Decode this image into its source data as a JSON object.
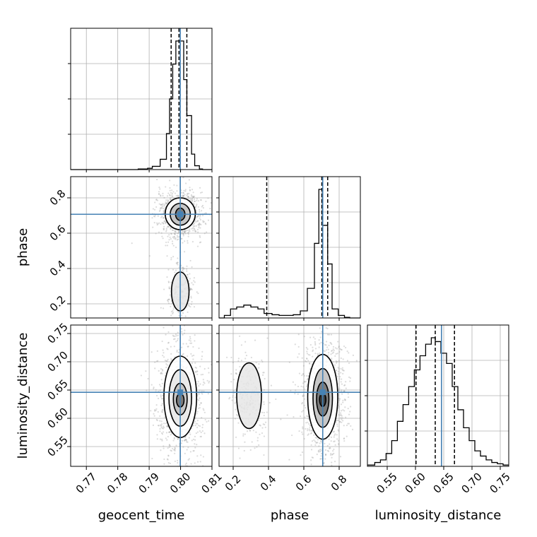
{
  "chart_data": {
    "type": "corner",
    "parameters": [
      "geocent_time",
      "phase",
      "luminosity_distance"
    ],
    "axis_labels": {
      "geocent_time": "geocent_time",
      "phase": "phase",
      "luminosity_distance": "luminosity_distance"
    },
    "ranges": {
      "geocent_time": [
        0.765,
        0.81
      ],
      "phase": [
        0.12,
        0.92
      ],
      "luminosity_distance": [
        0.515,
        0.765
      ]
    },
    "ticks": {
      "geocent_time": [
        "0.77",
        "0.78",
        "0.79",
        "0.80",
        "0.81"
      ],
      "phase": [
        "0.2",
        "0.4",
        "0.6",
        "0.8"
      ],
      "luminosity_distance": [
        "0.55",
        "0.60",
        "0.65",
        "0.70",
        "0.75"
      ]
    },
    "truths": {
      "geocent_time": 0.7999,
      "phase": 0.707,
      "luminosity_distance": 0.646
    },
    "quantiles": {
      "geocent_time": [
        0.797,
        0.7995,
        0.802
      ],
      "phase": [
        0.39,
        0.702,
        0.735
      ],
      "luminosity_distance": [
        0.601,
        0.635,
        0.669
      ]
    },
    "histograms": {
      "geocent_time": {
        "bin_edges": [
          0.765,
          0.7865,
          0.7895,
          0.791,
          0.7935,
          0.7955,
          0.7965,
          0.7975,
          0.7985,
          0.7995,
          0.801,
          0.802,
          0.8035,
          0.8045,
          0.806,
          0.807,
          0.81
        ],
        "counts": [
          0,
          0.005,
          0.01,
          0.025,
          0.08,
          0.28,
          0.55,
          0.82,
          1.0,
          1.0,
          0.7,
          0.42,
          0.12,
          0.03,
          0.005,
          0
        ]
      },
      "phase": {
        "bin_edges": [
          0.12,
          0.15,
          0.185,
          0.22,
          0.26,
          0.3,
          0.34,
          0.375,
          0.42,
          0.46,
          0.5,
          0.54,
          0.58,
          0.62,
          0.66,
          0.685,
          0.705,
          0.735,
          0.76,
          0.795,
          0.83,
          0.86,
          0.92
        ],
        "counts": [
          0,
          0.02,
          0.07,
          0.085,
          0.1,
          0.085,
          0.07,
          0.035,
          0.025,
          0.02,
          0.02,
          0.025,
          0.055,
          0.23,
          0.58,
          1.0,
          0.72,
          0.42,
          0.07,
          0.02,
          0.005,
          0
        ]
      },
      "luminosity_distance": {
        "bin_edges": [
          0.515,
          0.528,
          0.538,
          0.548,
          0.558,
          0.568,
          0.578,
          0.588,
          0.598,
          0.608,
          0.618,
          0.628,
          0.635,
          0.645,
          0.655,
          0.665,
          0.675,
          0.685,
          0.695,
          0.705,
          0.715,
          0.725,
          0.735,
          0.745,
          0.755,
          0.765
        ],
        "counts": [
          0.01,
          0.03,
          0.05,
          0.1,
          0.2,
          0.35,
          0.48,
          0.62,
          0.75,
          0.86,
          0.95,
          1.0,
          0.97,
          0.88,
          0.8,
          0.62,
          0.44,
          0.3,
          0.2,
          0.12,
          0.08,
          0.05,
          0.03,
          0.02,
          0.01
        ]
      }
    },
    "contours": {
      "phase_vs_geocent_time": [
        {
          "center": [
            0.7999,
            0.707
          ],
          "radii": [
            0.0015,
            0.035
          ]
        },
        {
          "center": [
            0.7999,
            0.707
          ],
          "radii": [
            0.0032,
            0.062
          ]
        },
        {
          "center": [
            0.7999,
            0.71
          ],
          "radii": [
            0.0048,
            0.09
          ]
        },
        {
          "center": [
            0.7999,
            0.27
          ],
          "radii": [
            0.0028,
            0.11
          ]
        }
      ],
      "luminosity_distance_vs_geocent_time": [
        {
          "center": [
            0.7999,
            0.632
          ],
          "radii": [
            0.0012,
            0.012
          ]
        },
        {
          "center": [
            0.7999,
            0.634
          ],
          "radii": [
            0.0022,
            0.028
          ]
        },
        {
          "center": [
            0.7999,
            0.636
          ],
          "radii": [
            0.0036,
            0.05
          ]
        },
        {
          "center": [
            0.7999,
            0.638
          ],
          "radii": [
            0.0052,
            0.072
          ]
        }
      ],
      "luminosity_distance_vs_phase": [
        {
          "center": [
            0.707,
            0.633
          ],
          "radii": [
            0.018,
            0.012
          ]
        },
        {
          "center": [
            0.707,
            0.634
          ],
          "radii": [
            0.035,
            0.03
          ]
        },
        {
          "center": [
            0.707,
            0.636
          ],
          "radii": [
            0.055,
            0.052
          ]
        },
        {
          "center": [
            0.707,
            0.638
          ],
          "radii": [
            0.085,
            0.075
          ]
        },
        {
          "center": [
            0.29,
            0.64
          ],
          "radii": [
            0.07,
            0.058
          ]
        }
      ]
    },
    "grid": true,
    "colors": {
      "truth": "#4682b4",
      "hist": "#000000",
      "quantile": "#000000",
      "grid": "#b0b0b0",
      "points": "#9a9a9a"
    }
  }
}
